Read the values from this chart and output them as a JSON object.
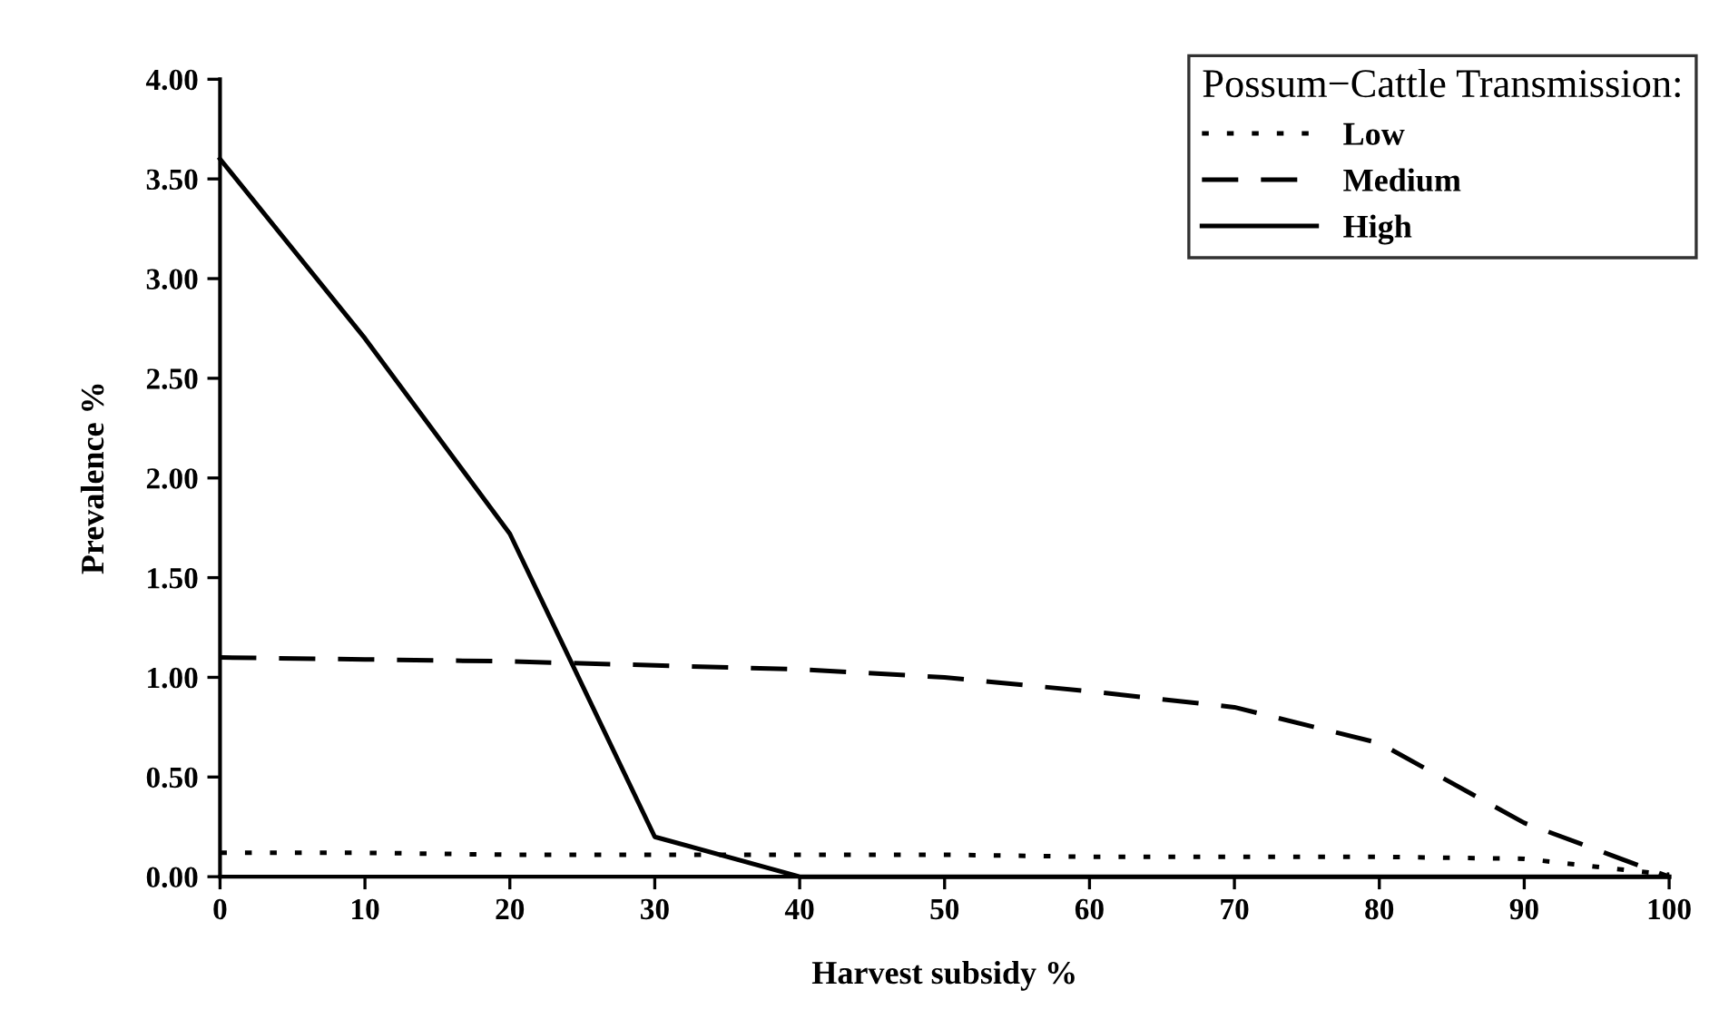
{
  "chart_data": {
    "type": "line",
    "xlabel": "Harvest subsidy %",
    "ylabel": "Prevalence %",
    "legend_title": "Possum−Cattle Transmission:",
    "legend": "top right",
    "grid": false,
    "marker": "none",
    "x": [
      0,
      10,
      20,
      30,
      40,
      50,
      60,
      70,
      80,
      90,
      100
    ],
    "series": [
      {
        "name": "Low",
        "color": "#000000",
        "line_style": "dotted",
        "values": [
          0.12,
          0.12,
          0.11,
          0.11,
          0.11,
          0.11,
          0.1,
          0.1,
          0.1,
          0.09,
          0.01
        ]
      },
      {
        "name": "Medium",
        "color": "#000000",
        "line_style": "dashed",
        "values": [
          1.1,
          1.09,
          1.08,
          1.06,
          1.04,
          1.0,
          0.93,
          0.85,
          0.67,
          0.27,
          0.0
        ]
      },
      {
        "name": "High",
        "color": "#000000",
        "line_style": "solid",
        "values": [
          3.6,
          2.7,
          1.72,
          0.2,
          0.0,
          0.0,
          0.0,
          0.0,
          0.0,
          0.0,
          0.0
        ]
      }
    ],
    "xlim": [
      0,
      100
    ],
    "xticks": [
      0,
      10,
      20,
      30,
      40,
      50,
      60,
      70,
      80,
      90,
      100
    ],
    "ylim": [
      0,
      4
    ],
    "yticks": [
      {
        "value": 0,
        "label": "0.00"
      },
      {
        "value": 0.5,
        "label": "0.50"
      },
      {
        "value": 1,
        "label": "1.00"
      },
      {
        "value": 1.5,
        "label": "1.50"
      },
      {
        "value": 2,
        "label": "2.00"
      },
      {
        "value": 2.5,
        "label": "2.50"
      },
      {
        "value": 3,
        "label": "3.00"
      },
      {
        "value": 3.5,
        "label": "3.50"
      },
      {
        "value": 4,
        "label": "4.00"
      }
    ]
  }
}
